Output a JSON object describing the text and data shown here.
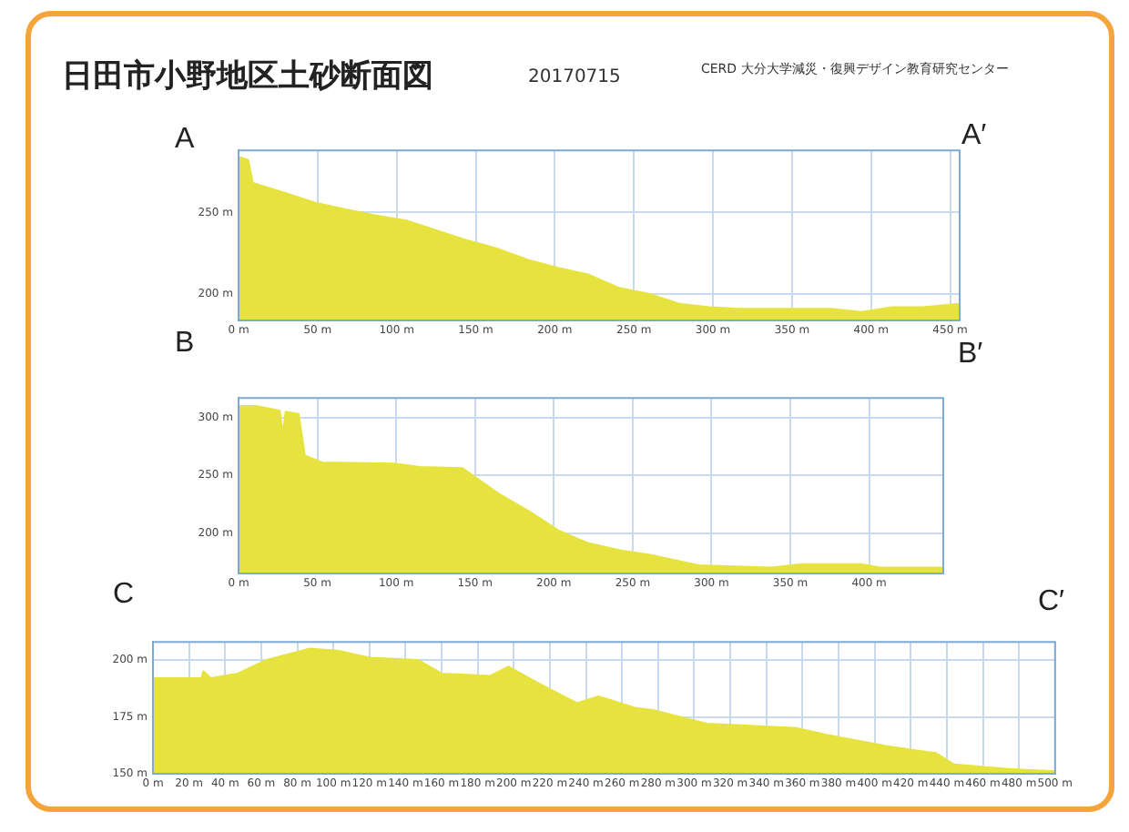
{
  "chart_data": [
    {
      "type": "area",
      "title": "日田市小野地区土砂断面図",
      "subtitle": "20170715",
      "annotations": [
        "A",
        "A′",
        "CERD 大分大学減災・復興デザイン教育研究センター"
      ],
      "x": [
        0,
        6,
        9,
        29,
        48,
        67,
        87,
        106,
        125,
        144,
        163,
        183,
        202,
        221,
        240,
        260,
        279,
        298,
        317,
        337,
        375,
        394,
        413,
        433,
        456
      ],
      "series": [
        {
          "color": "#e6e33f",
          "values": [
            284,
            282,
            268,
            262,
            256,
            252,
            248,
            245,
            239,
            233,
            228,
            221,
            216,
            212,
            204,
            200,
            194,
            192,
            191,
            191,
            191,
            189,
            192,
            192,
            194
          ]
        }
      ],
      "xlim": [
        0,
        456
      ],
      "ylim": [
        184,
        288
      ],
      "xticks": [
        {
          "value": 0,
          "label": "0 m"
        },
        {
          "value": 50,
          "label": "50 m"
        },
        {
          "value": 100,
          "label": "100 m"
        },
        {
          "value": 150,
          "label": "150 m"
        },
        {
          "value": 200,
          "label": "200 m"
        },
        {
          "value": 250,
          "label": "250 m"
        },
        {
          "value": 300,
          "label": "300 m"
        },
        {
          "value": 350,
          "label": "350 m"
        },
        {
          "value": 400,
          "label": "400 m"
        },
        {
          "value": 450,
          "label": "450 m"
        }
      ],
      "yticks": [
        {
          "value": 200,
          "label": "200 m"
        },
        {
          "value": 250,
          "label": "250 m"
        }
      ],
      "grid": true,
      "legend": false,
      "marker": "none",
      "line_style": "solid"
    },
    {
      "type": "area",
      "annotations": [
        "B",
        "B′"
      ],
      "x": [
        0,
        11,
        26,
        28,
        30,
        38,
        42,
        53,
        99,
        115,
        142,
        165,
        184,
        203,
        222,
        242,
        261,
        292,
        338,
        357,
        395,
        407,
        447
      ],
      "series": [
        {
          "color": "#e6e33f",
          "values": [
            310,
            310,
            306,
            285,
            305,
            303,
            267,
            261,
            260,
            257,
            256,
            234,
            219,
            202,
            191,
            185,
            181,
            172,
            170,
            173,
            173,
            170,
            170
          ]
        }
      ],
      "xlim": [
        0,
        447
      ],
      "ylim": [
        165,
        317
      ],
      "xticks": [
        {
          "value": 0,
          "label": "0 m"
        },
        {
          "value": 50,
          "label": "50 m"
        },
        {
          "value": 100,
          "label": "100 m"
        },
        {
          "value": 150,
          "label": "150 m"
        },
        {
          "value": 200,
          "label": "200 m"
        },
        {
          "value": 250,
          "label": "250 m"
        },
        {
          "value": 300,
          "label": "300 m"
        },
        {
          "value": 350,
          "label": "350 m"
        },
        {
          "value": 400,
          "label": "400 m"
        }
      ],
      "yticks": [
        {
          "value": 200,
          "label": "200 m"
        },
        {
          "value": 250,
          "label": "250 m"
        },
        {
          "value": 300,
          "label": "300 m"
        }
      ],
      "grid": true,
      "legend": false,
      "marker": "none",
      "line_style": "solid"
    },
    {
      "type": "area",
      "annotations": [
        "C",
        "C′"
      ],
      "x": [
        0,
        27,
        28,
        32,
        47,
        63,
        87,
        103,
        120,
        147,
        160,
        187,
        197,
        213,
        235,
        247,
        267,
        277,
        297,
        307,
        357,
        374,
        407,
        434,
        444,
        474,
        500
      ],
      "series": [
        {
          "color": "#e6e33f",
          "values": [
            192,
            192,
            195,
            192,
            194,
            200,
            205,
            204,
            201,
            200,
            194,
            193,
            197,
            190,
            181,
            184,
            179,
            178,
            174,
            172,
            170,
            167,
            162,
            159,
            154,
            152,
            151
          ]
        }
      ],
      "xlim": [
        0,
        500
      ],
      "ylim": [
        150,
        208
      ],
      "xticks": [
        {
          "value": 0,
          "label": "0 m"
        },
        {
          "value": 20,
          "label": "20 m"
        },
        {
          "value": 40,
          "label": "40 m"
        },
        {
          "value": 60,
          "label": "60 m"
        },
        {
          "value": 80,
          "label": "80 m"
        },
        {
          "value": 100,
          "label": "100 m"
        },
        {
          "value": 120,
          "label": "120 m"
        },
        {
          "value": 140,
          "label": "140 m"
        },
        {
          "value": 160,
          "label": "160 m"
        },
        {
          "value": 180,
          "label": "180 m"
        },
        {
          "value": 200,
          "label": "200 m"
        },
        {
          "value": 220,
          "label": "220 m"
        },
        {
          "value": 240,
          "label": "240 m"
        },
        {
          "value": 260,
          "label": "260 m"
        },
        {
          "value": 280,
          "label": "280 m"
        },
        {
          "value": 300,
          "label": "300 m"
        },
        {
          "value": 320,
          "label": "320 m"
        },
        {
          "value": 340,
          "label": "340 m"
        },
        {
          "value": 360,
          "label": "360 m"
        },
        {
          "value": 380,
          "label": "380 m"
        },
        {
          "value": 400,
          "label": "400 m"
        },
        {
          "value": 420,
          "label": "420 m"
        },
        {
          "value": 440,
          "label": "440 m"
        },
        {
          "value": 460,
          "label": "460 m"
        },
        {
          "value": 480,
          "label": "480 m"
        },
        {
          "value": 500,
          "label": "500 m"
        }
      ],
      "yticks": [
        {
          "value": 150,
          "label": "150 m"
        },
        {
          "value": 175,
          "label": "175 m"
        },
        {
          "value": 200,
          "label": "200 m"
        }
      ],
      "grid": true,
      "legend": false,
      "marker": "none",
      "line_style": "solid"
    }
  ]
}
